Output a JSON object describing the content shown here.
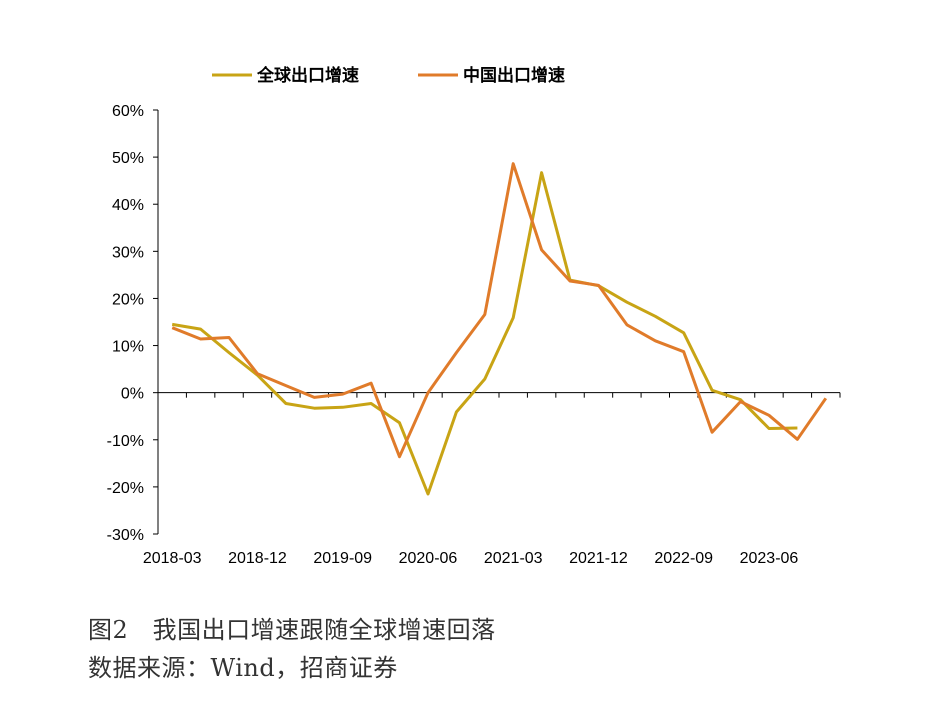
{
  "chart_data": {
    "type": "line",
    "x": [
      "2018-03",
      "2018-06",
      "2018-09",
      "2018-12",
      "2019-03",
      "2019-06",
      "2019-09",
      "2019-12",
      "2020-03",
      "2020-06",
      "2020-09",
      "2020-12",
      "2021-03",
      "2021-06",
      "2021-09",
      "2021-12",
      "2022-03",
      "2022-06",
      "2022-09",
      "2022-12",
      "2023-03",
      "2023-06",
      "2023-09",
      "2023-12"
    ],
    "x_tick_labels": [
      "2018-03",
      "2018-12",
      "2019-09",
      "2020-06",
      "2021-03",
      "2021-12",
      "2022-09",
      "2023-06"
    ],
    "y_tick_labels": [
      "60%",
      "50%",
      "40%",
      "30%",
      "20%",
      "10%",
      "0%",
      "-10%",
      "-20%",
      "-30%"
    ],
    "ylim": [
      -30,
      60
    ],
    "series": [
      {
        "name": "全球出口增速",
        "color": "#C8A415",
        "values": [
          14.5,
          13.5,
          8.5,
          3.7,
          -2.3,
          -3.3,
          -3.1,
          -2.3,
          -6.4,
          -21.5,
          -4.1,
          2.9,
          15.9,
          46.7,
          23.9,
          22.7,
          19.2,
          16.2,
          12.7,
          0.5,
          -1.5,
          -7.6,
          -7.5,
          null
        ]
      },
      {
        "name": "中国出口增速",
        "color": "#E07B2A",
        "values": [
          13.8,
          11.4,
          11.7,
          4.0,
          1.5,
          -1.0,
          -0.3,
          2.0,
          -13.6,
          0.0,
          8.5,
          16.6,
          48.6,
          30.3,
          23.7,
          22.8,
          14.4,
          11.0,
          8.7,
          -8.4,
          -1.9,
          -4.8,
          -9.9,
          -1.2
        ]
      }
    ]
  },
  "caption": {
    "title": "图2   我国出口增速跟随全球增速回落",
    "source": "数据来源：Wind，招商证券"
  }
}
